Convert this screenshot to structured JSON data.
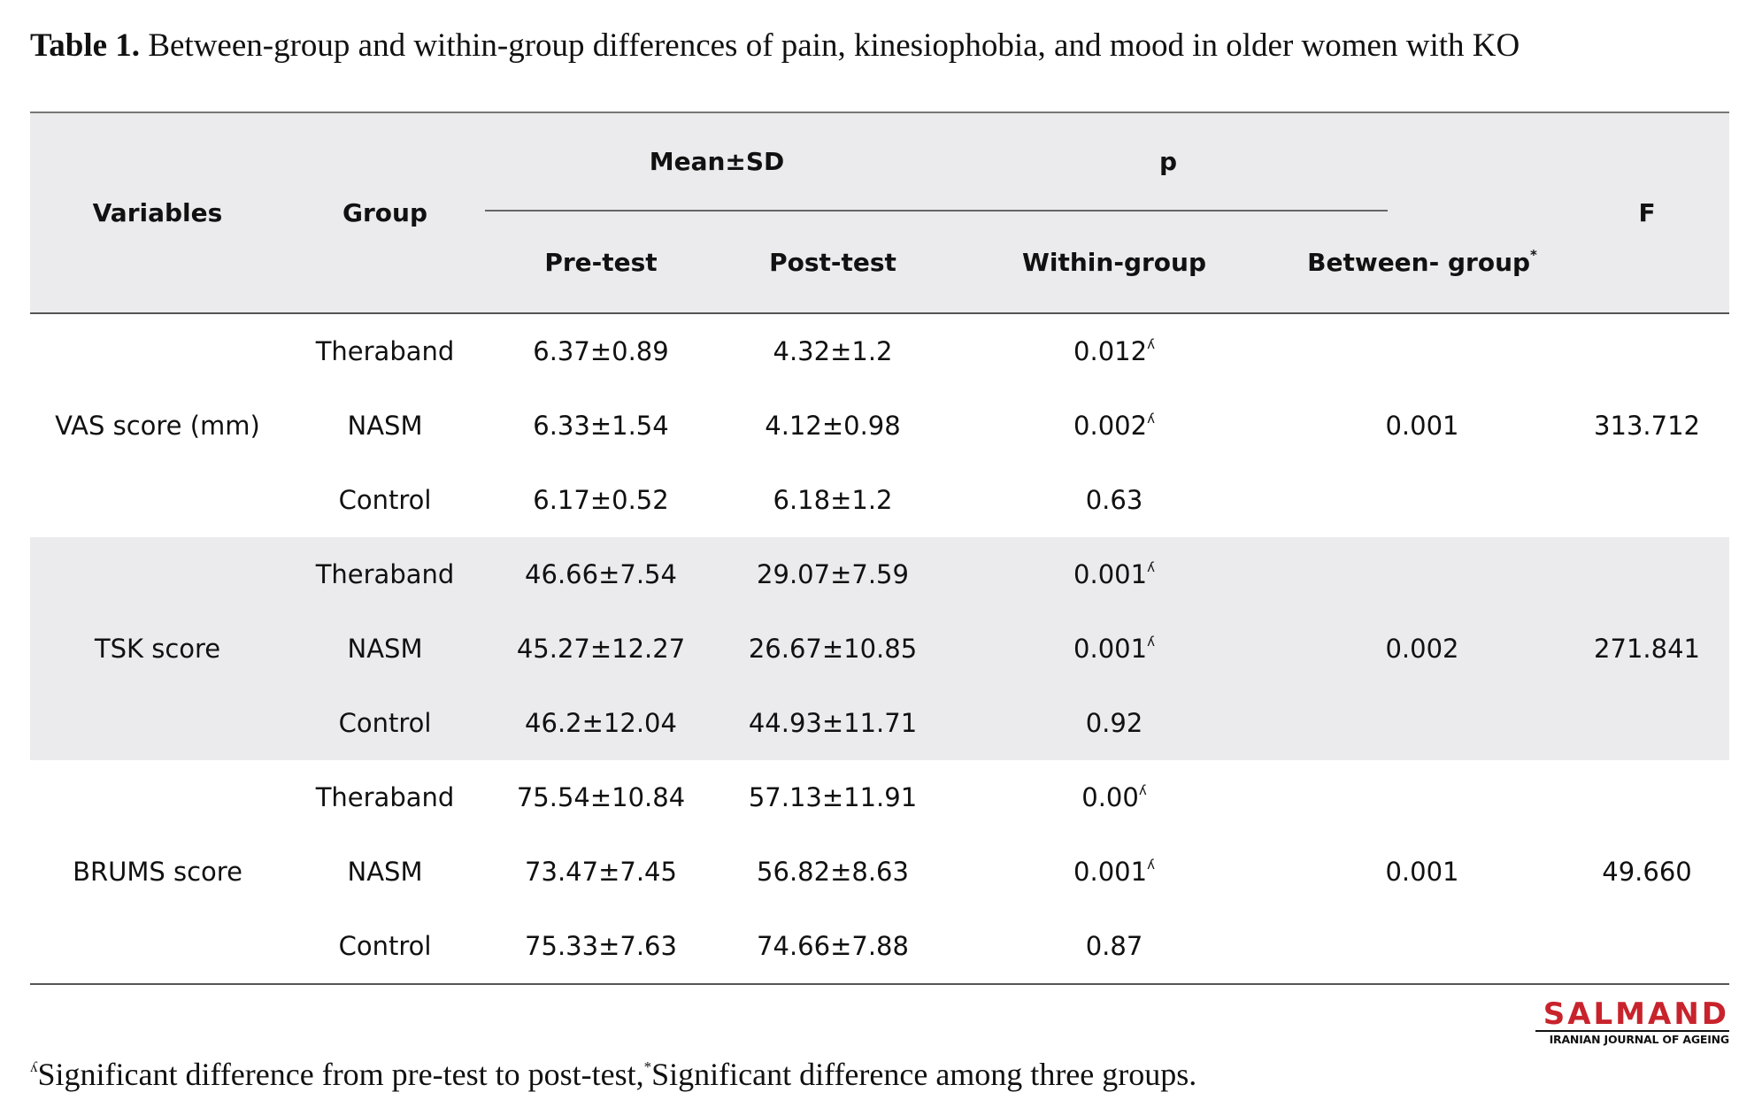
{
  "caption": {
    "label": "Table 1.",
    "text": " Between-group and within-group differences of pain, kinesiophobia, and mood in older women with KO"
  },
  "table": {
    "headers": {
      "variables": "Variables",
      "group": "Group",
      "mean_sd": "Mean±SD",
      "p": "p",
      "f": "F",
      "pre_test": "Pre-test",
      "post_test": "Post-test",
      "within_group": "Within-group",
      "between_group": "Between- group",
      "between_group_mark": "*"
    },
    "blocks": [
      {
        "variable": "VAS score (mm)",
        "between_p": "0.001",
        "f": "313.712",
        "rows": [
          {
            "group": "Theraband",
            "pre": "6.37±0.89",
            "post": "4.32±1.2",
            "within": "0.012",
            "mark": "ʎ"
          },
          {
            "group": "NASM",
            "pre": "6.33±1.54",
            "post": "4.12±0.98",
            "within": "0.002",
            "mark": "ʎ"
          },
          {
            "group": "Control",
            "pre": "6.17±0.52",
            "post": "6.18±1.2",
            "within": "0.63",
            "mark": ""
          }
        ]
      },
      {
        "variable": "TSK score",
        "between_p": "0.002",
        "f": "271.841",
        "rows": [
          {
            "group": "Theraband",
            "pre": "46.66±7.54",
            "post": "29.07±7.59",
            "within": "0.001",
            "mark": "ʎ"
          },
          {
            "group": "NASM",
            "pre": "45.27±12.27",
            "post": "26.67±10.85",
            "within": "0.001",
            "mark": "ʎ"
          },
          {
            "group": "Control",
            "pre": "46.2±12.04",
            "post": "44.93±11.71",
            "within": "0.92",
            "mark": ""
          }
        ]
      },
      {
        "variable": "BRUMS score",
        "between_p": "0.001",
        "f": "49.660",
        "rows": [
          {
            "group": "Theraband",
            "pre": "75.54±10.84",
            "post": "57.13±11.91",
            "within": "0.00",
            "mark": "ʎ"
          },
          {
            "group": "NASM",
            "pre": "73.47±7.45",
            "post": "56.82±8.63",
            "within": "0.001",
            "mark": "ʎ"
          },
          {
            "group": "Control",
            "pre": "75.33±7.63",
            "post": "74.66±7.88",
            "within": "0.87",
            "mark": ""
          }
        ]
      }
    ]
  },
  "brand": {
    "name": "SALMAND",
    "subtitle": "IRANIAN JOURNAL OF AGEING",
    "color": "#c8232c"
  },
  "footnote": {
    "mark1": "ʎ",
    "text1": "Significant difference from pre-test to post-test,",
    "mark2": "*",
    "text2": "Significant difference among three groups."
  }
}
